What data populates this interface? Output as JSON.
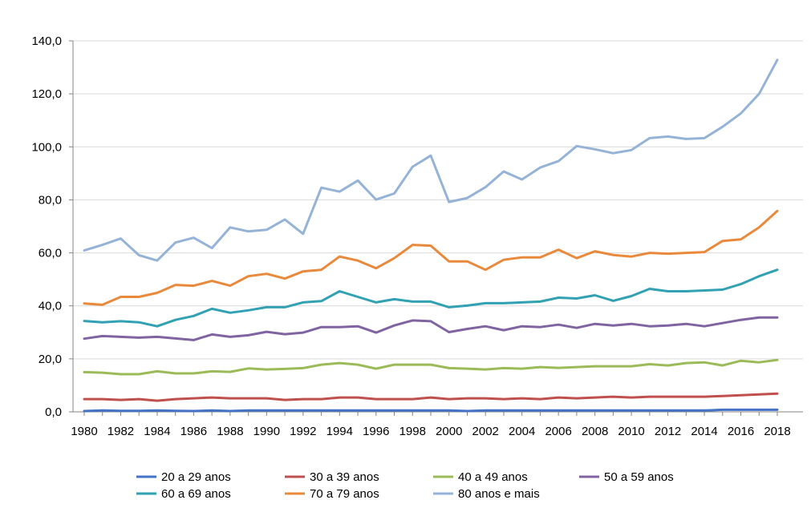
{
  "chart_data": {
    "type": "line",
    "title": "",
    "xlabel": "",
    "ylabel": "",
    "ylim": [
      0,
      140
    ],
    "y_ticks": [
      "0,0",
      "20,0",
      "40,0",
      "60,0",
      "80,0",
      "100,0",
      "120,0",
      "140,0"
    ],
    "y_tick_values": [
      0,
      20,
      40,
      60,
      80,
      100,
      120,
      140
    ],
    "x_ticks": [
      "1980",
      "1982",
      "1984",
      "1986",
      "1988",
      "1990",
      "1992",
      "1994",
      "1996",
      "1998",
      "2000",
      "2002",
      "2004",
      "2006",
      "2008",
      "2010",
      "2012",
      "2014",
      "2016",
      "2018"
    ],
    "grid": "horizontal",
    "legend_position": "bottom",
    "x": [
      1980,
      1981,
      1982,
      1983,
      1984,
      1985,
      1986,
      1987,
      1988,
      1989,
      1990,
      1991,
      1992,
      1993,
      1994,
      1995,
      1996,
      1997,
      1998,
      1999,
      2000,
      2001,
      2002,
      2003,
      2004,
      2005,
      2006,
      2007,
      2008,
      2009,
      2010,
      2011,
      2012,
      2013,
      2014,
      2015,
      2016,
      2017,
      2018
    ],
    "series": [
      {
        "name": "20 a 29 anos",
        "color": "#4472C4",
        "values": [
          0.3,
          0.5,
          0.4,
          0.4,
          0.5,
          0.4,
          0.3,
          0.5,
          0.3,
          0.5,
          0.5,
          0.5,
          0.5,
          0.5,
          0.5,
          0.5,
          0.5,
          0.5,
          0.5,
          0.5,
          0.5,
          0.3,
          0.5,
          0.5,
          0.5,
          0.5,
          0.5,
          0.5,
          0.5,
          0.5,
          0.5,
          0.5,
          0.5,
          0.5,
          0.5,
          0.8,
          0.8,
          0.8,
          0.8
        ]
      },
      {
        "name": "30 a 39 anos",
        "color": "#C0504D",
        "values": [
          4.8,
          4.8,
          4.5,
          4.8,
          4.2,
          4.8,
          5.1,
          5.4,
          5.1,
          5.1,
          5.1,
          4.5,
          4.8,
          4.8,
          5.4,
          5.4,
          4.8,
          4.8,
          4.8,
          5.4,
          4.8,
          5.1,
          5.1,
          4.8,
          5.1,
          4.8,
          5.4,
          5.1,
          5.4,
          5.7,
          5.4,
          5.7,
          5.7,
          5.7,
          5.7,
          6.0,
          6.3,
          6.6,
          6.9
        ]
      },
      {
        "name": "40 a 49 anos",
        "color": "#9BBB59",
        "values": [
          15.0,
          14.8,
          14.2,
          14.2,
          15.3,
          14.5,
          14.5,
          15.3,
          15.1,
          16.4,
          16.0,
          16.2,
          16.5,
          17.8,
          18.4,
          17.8,
          16.3,
          17.8,
          17.8,
          17.8,
          16.5,
          16.3,
          16.0,
          16.5,
          16.3,
          16.9,
          16.6,
          16.9,
          17.2,
          17.2,
          17.2,
          18.0,
          17.5,
          18.4,
          18.7,
          17.5,
          19.3,
          18.7,
          19.6
        ]
      },
      {
        "name": "50 a 59 anos",
        "color": "#8064A2",
        "values": [
          27.6,
          28.6,
          28.3,
          28.0,
          28.3,
          27.7,
          27.1,
          29.2,
          28.3,
          28.9,
          30.2,
          29.3,
          29.9,
          32.0,
          32.0,
          32.3,
          29.9,
          32.6,
          34.5,
          34.2,
          30.1,
          31.3,
          32.3,
          30.8,
          32.3,
          32.0,
          32.9,
          31.7,
          33.2,
          32.6,
          33.2,
          32.3,
          32.6,
          33.2,
          32.3,
          33.5,
          34.7,
          35.6,
          35.6
        ]
      },
      {
        "name": "60 a 69 anos",
        "color": "#31A1B3",
        "values": [
          34.3,
          33.8,
          34.2,
          33.8,
          32.3,
          34.7,
          36.2,
          38.9,
          37.4,
          38.3,
          39.5,
          39.5,
          41.3,
          41.8,
          45.5,
          43.4,
          41.3,
          42.5,
          41.6,
          41.6,
          39.5,
          40.1,
          41.0,
          41.0,
          41.3,
          41.6,
          43.1,
          42.8,
          44.0,
          41.9,
          43.7,
          46.4,
          45.5,
          45.5,
          45.8,
          46.1,
          48.2,
          51.2,
          53.6
        ]
      },
      {
        "name": "70 a 79 anos",
        "color": "#E9893C",
        "values": [
          40.9,
          40.4,
          43.4,
          43.4,
          44.9,
          47.9,
          47.6,
          49.4,
          47.6,
          51.2,
          52.1,
          50.3,
          53.0,
          53.6,
          58.6,
          57.1,
          54.2,
          58.0,
          63.0,
          62.7,
          56.8,
          56.8,
          53.6,
          57.4,
          58.3,
          58.3,
          61.2,
          58.0,
          60.6,
          59.2,
          58.6,
          60.0,
          59.7,
          60.0,
          60.3,
          64.5,
          65.1,
          69.6,
          75.8
        ]
      },
      {
        "name": "80 anos e mais",
        "color": "#95B3D7",
        "values": [
          60.9,
          63.0,
          65.4,
          59.1,
          57.1,
          63.9,
          65.7,
          61.8,
          69.6,
          68.1,
          68.7,
          72.6,
          67.2,
          84.6,
          83.1,
          87.3,
          80.1,
          82.4,
          92.5,
          96.7,
          79.2,
          80.7,
          84.8,
          90.7,
          87.7,
          92.2,
          94.6,
          100.3,
          99.1,
          97.6,
          98.8,
          103.3,
          103.9,
          103.0,
          103.3,
          107.6,
          112.6,
          120.0,
          132.8
        ]
      }
    ]
  }
}
